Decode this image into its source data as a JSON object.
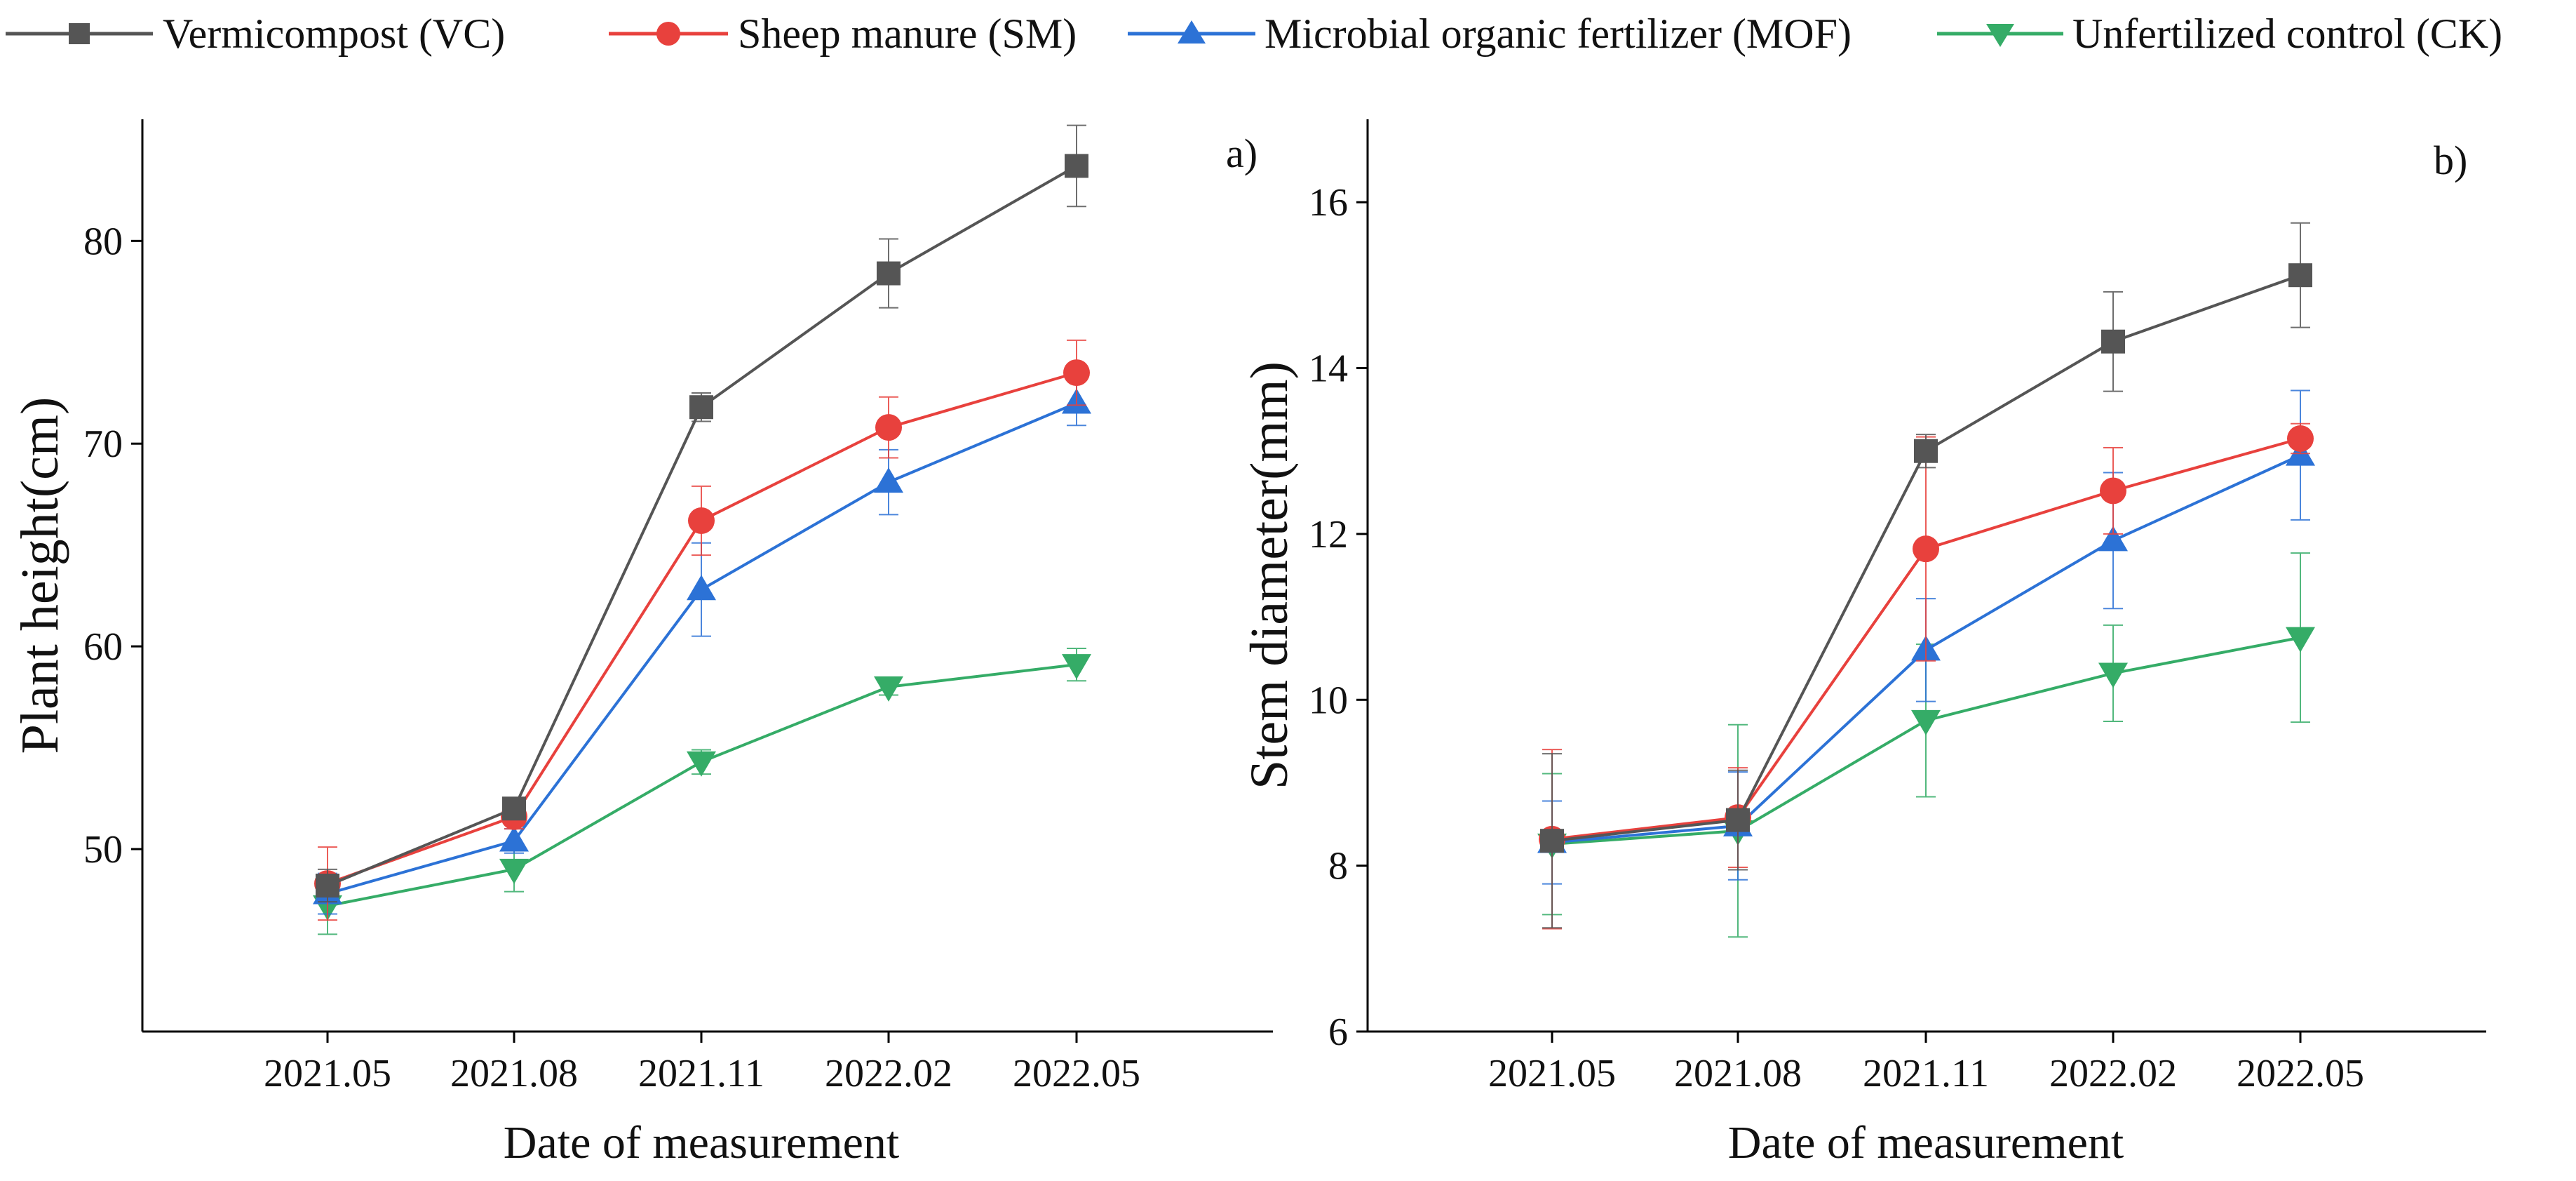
{
  "chart_data": [
    {
      "type": "line",
      "panel_label": "a)",
      "title": "",
      "xlabel": "Date of measurement",
      "ylabel": "Plant height(cm)",
      "categories": [
        "2021.05",
        "2021.08",
        "2021.11",
        "2022.02",
        "2022.05"
      ],
      "ylim": [
        41,
        86
      ],
      "yticks": [
        50,
        60,
        70,
        80
      ],
      "grid": false,
      "series": [
        {
          "name": "Vermicompost (VC)",
          "color": "#555555",
          "marker": "square",
          "values": [
            48.2,
            52.0,
            71.8,
            78.4,
            83.7
          ],
          "errors": [
            0.8,
            0.5,
            0.7,
            1.7,
            2.0
          ]
        },
        {
          "name": "Sheep manure (SM)",
          "color": "#e8413d",
          "marker": "circle",
          "values": [
            48.3,
            51.6,
            66.2,
            70.8,
            73.5
          ],
          "errors": [
            1.8,
            0.6,
            1.7,
            1.5,
            1.6
          ]
        },
        {
          "name": "Microbial organic fertilizer (MOF)",
          "color": "#2c72d6",
          "marker": "triangle-up",
          "values": [
            47.8,
            50.4,
            62.8,
            68.1,
            72.0
          ],
          "errors": [
            1.0,
            0.6,
            2.3,
            1.6,
            1.1
          ]
        },
        {
          "name": "Unfertilized control (CK)",
          "color": "#35ac67",
          "marker": "triangle-down",
          "values": [
            47.2,
            49.0,
            54.3,
            58.0,
            59.1
          ],
          "errors": [
            1.4,
            1.1,
            0.6,
            0.4,
            0.8
          ]
        }
      ]
    },
    {
      "type": "line",
      "panel_label": "b)",
      "title": "",
      "xlabel": "Date of measurement",
      "ylabel": "Stem diameter(mm)",
      "categories": [
        "2021.05",
        "2021.08",
        "2021.11",
        "2022.02",
        "2022.05"
      ],
      "ylim": [
        6,
        17
      ],
      "yticks": [
        6,
        8,
        10,
        12,
        14,
        16
      ],
      "grid": false,
      "series": [
        {
          "name": "Vermicompost (VC)",
          "color": "#555555",
          "marker": "square",
          "values": [
            8.3,
            8.55,
            13.0,
            14.32,
            15.12
          ],
          "errors": [
            1.05,
            0.6,
            0.2,
            0.6,
            0.63
          ]
        },
        {
          "name": "Sheep manure (SM)",
          "color": "#e8413d",
          "marker": "circle",
          "values": [
            8.32,
            8.58,
            11.82,
            12.52,
            13.15
          ],
          "errors": [
            1.08,
            0.6,
            1.35,
            0.52,
            0.18
          ]
        },
        {
          "name": "Microbial organic fertilizer (MOF)",
          "color": "#2c72d6",
          "marker": "triangle-up",
          "values": [
            8.28,
            8.48,
            10.6,
            11.92,
            12.95
          ],
          "errors": [
            0.5,
            0.65,
            0.62,
            0.82,
            0.78
          ]
        },
        {
          "name": "Unfertilized control (CK)",
          "color": "#35ac67",
          "marker": "triangle-down",
          "values": [
            8.26,
            8.42,
            9.75,
            10.32,
            10.75
          ],
          "errors": [
            0.85,
            1.28,
            0.92,
            0.58,
            1.02
          ]
        }
      ]
    }
  ],
  "legend": [
    {
      "label": "Vermicompost (VC)",
      "color": "#555555",
      "marker": "square"
    },
    {
      "label": "Sheep manure (SM)",
      "color": "#e8413d",
      "marker": "circle"
    },
    {
      "label": "Microbial organic fertilizer (MOF)",
      "color": "#2c72d6",
      "marker": "triangle-up"
    },
    {
      "label": "Unfertilized control (CK)",
      "color": "#35ac67",
      "marker": "triangle-down"
    }
  ]
}
